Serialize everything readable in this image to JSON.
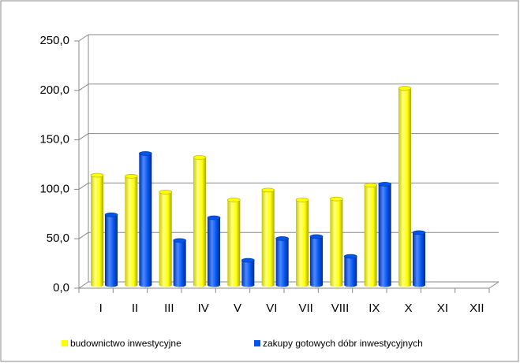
{
  "chart_data": {
    "type": "bar",
    "categories": [
      "I",
      "II",
      "III",
      "IV",
      "V",
      "VI",
      "VII",
      "VIII",
      "IX",
      "X",
      "XI",
      "XII"
    ],
    "series": [
      {
        "name": "budownictwo inwestycyjne",
        "color": "#ffff00",
        "values": [
          111,
          110,
          94,
          129,
          86,
          96,
          86,
          87,
          101,
          199,
          null,
          null
        ]
      },
      {
        "name": "zakupy gotowych dóbr inwestycyjnych",
        "color": "#0055ee",
        "values": [
          71,
          133,
          45,
          68,
          25,
          47,
          49,
          29,
          102,
          53,
          null,
          null
        ]
      }
    ],
    "ylim": [
      0,
      250
    ],
    "yticks": [
      {
        "value": 0,
        "label": "0,0"
      },
      {
        "value": 50,
        "label": "50,0"
      },
      {
        "value": 100,
        "label": "100,0"
      },
      {
        "value": 150,
        "label": "150,0"
      },
      {
        "value": 200,
        "label": "200,0"
      },
      {
        "value": 250,
        "label": "250,0"
      }
    ],
    "grid": true,
    "legend": "bottom"
  }
}
